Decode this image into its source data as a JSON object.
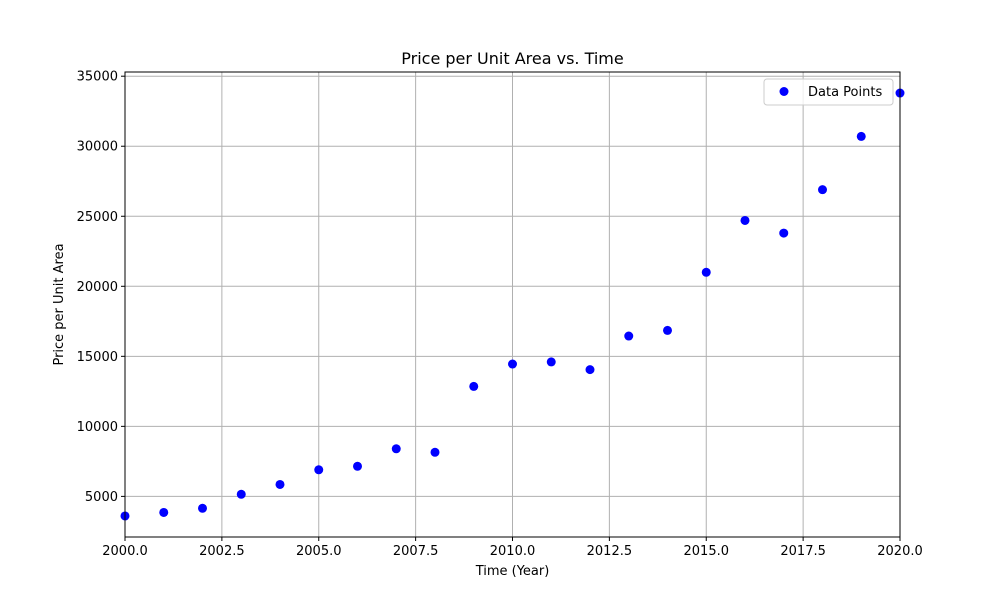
{
  "chart_data": {
    "type": "scatter",
    "title": "Price per Unit Area vs. Time",
    "xlabel": "Time (Year)",
    "ylabel": "Price per Unit Area",
    "xlim": [
      2000,
      2020
    ],
    "ylim": [
      2100,
      35300
    ],
    "xticks": [
      2000,
      2002.5,
      2005,
      2007.5,
      2010,
      2012.5,
      2015,
      2017.5,
      2020
    ],
    "xtick_labels": [
      "2000.0",
      "2002.5",
      "2005.0",
      "2007.5",
      "2010.0",
      "2012.5",
      "2015.0",
      "2017.5",
      "2020.0"
    ],
    "yticks": [
      5000,
      10000,
      15000,
      20000,
      25000,
      30000,
      35000
    ],
    "ytick_labels": [
      "5000",
      "10000",
      "15000",
      "20000",
      "25000",
      "30000",
      "35000"
    ],
    "grid": true,
    "legend": {
      "position": "top-right",
      "entries": [
        "Data Points"
      ]
    },
    "series": [
      {
        "name": "Data Points",
        "color": "#0000ff",
        "x": [
          2000,
          2001,
          2002,
          2003,
          2004,
          2005,
          2006,
          2007,
          2008,
          2009,
          2010,
          2011,
          2012,
          2013,
          2014,
          2015,
          2016,
          2017,
          2018,
          2019,
          2020
        ],
        "y": [
          3600,
          3850,
          4150,
          5150,
          5850,
          6900,
          7150,
          8400,
          8150,
          12850,
          14450,
          14600,
          14050,
          16450,
          16850,
          21000,
          24700,
          23800,
          26900,
          30700,
          33800
        ]
      }
    ]
  }
}
